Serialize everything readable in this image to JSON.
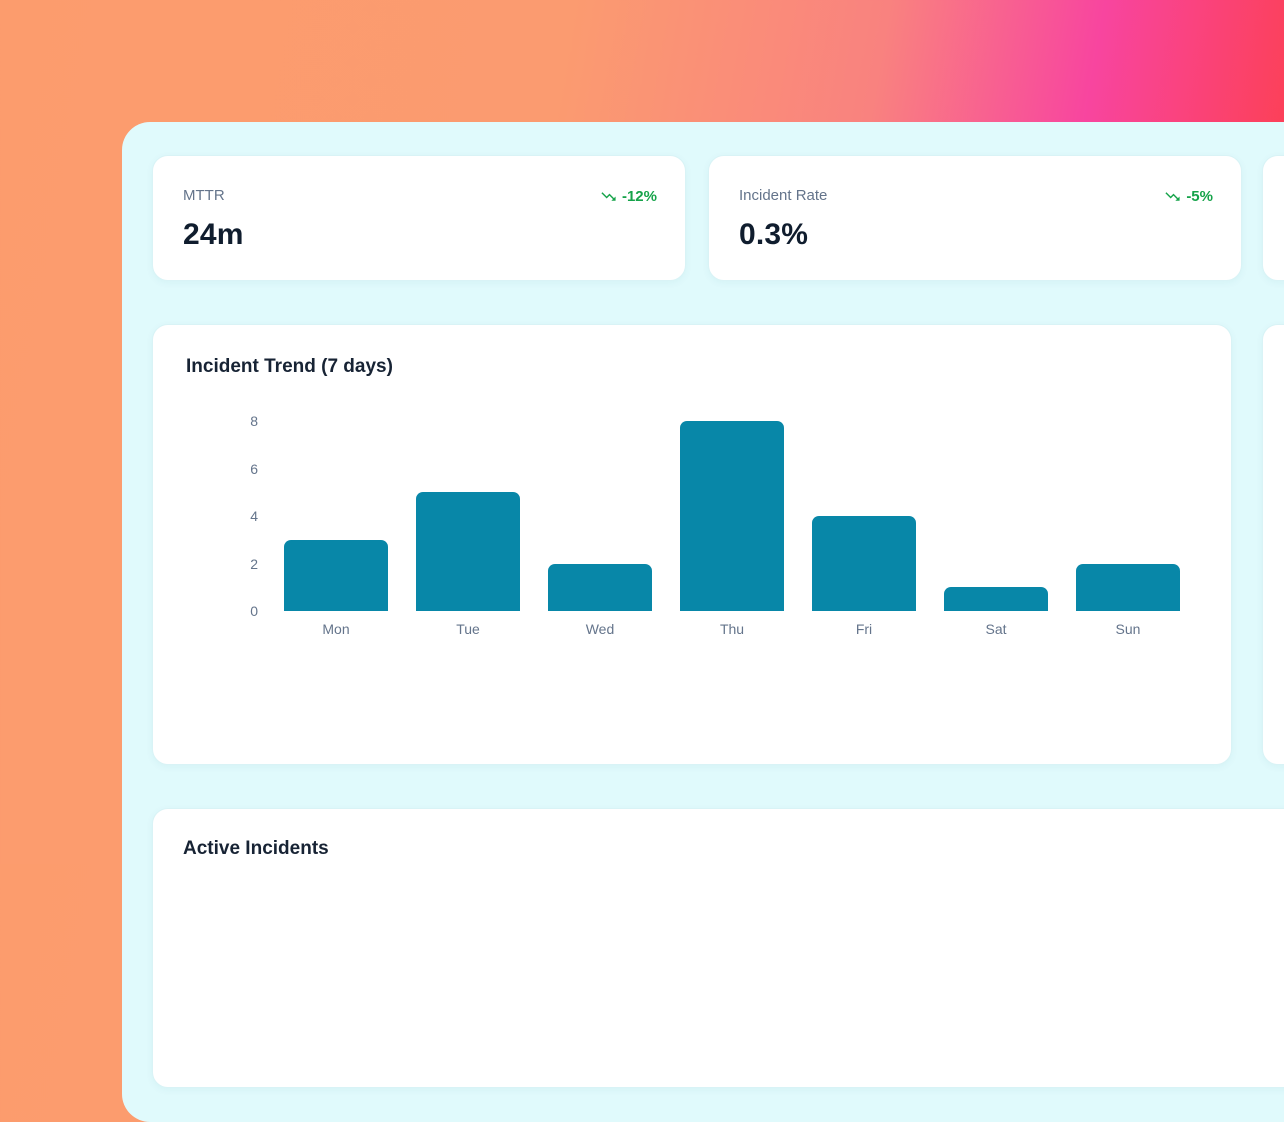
{
  "background": {
    "gradient_colors": [
      "#fc9c6d",
      "#f9827f",
      "#f8459f",
      "#fc4053"
    ]
  },
  "panel": {
    "bg_color": "#e0fafc"
  },
  "stats": [
    {
      "label": "MTTR",
      "value": "24m",
      "trend": "-12%",
      "trend_direction": "down",
      "trend_icon": "trending-down-icon",
      "trend_color": "#16a34a"
    },
    {
      "label": "Incident Rate",
      "value": "0.3%",
      "trend": "-5%",
      "trend_direction": "down",
      "trend_icon": "trending-down-icon",
      "trend_color": "#16a34a"
    }
  ],
  "chart_card": {
    "title": "Incident Trend (7 days)"
  },
  "chart_data": {
    "type": "bar",
    "title": "Incident Trend (7 days)",
    "categories": [
      "Mon",
      "Tue",
      "Wed",
      "Thu",
      "Fri",
      "Sat",
      "Sun"
    ],
    "values": [
      3,
      5,
      2,
      8,
      4,
      1,
      2
    ],
    "xlabel": "",
    "ylabel": "",
    "ylim": [
      0,
      8
    ],
    "yticks": [
      0,
      2,
      4,
      6,
      8
    ],
    "bar_color": "#0887a8",
    "axis_label_color": "#64748b",
    "grid": false,
    "legend": false
  },
  "incidents_card": {
    "title": "Active Incidents"
  }
}
